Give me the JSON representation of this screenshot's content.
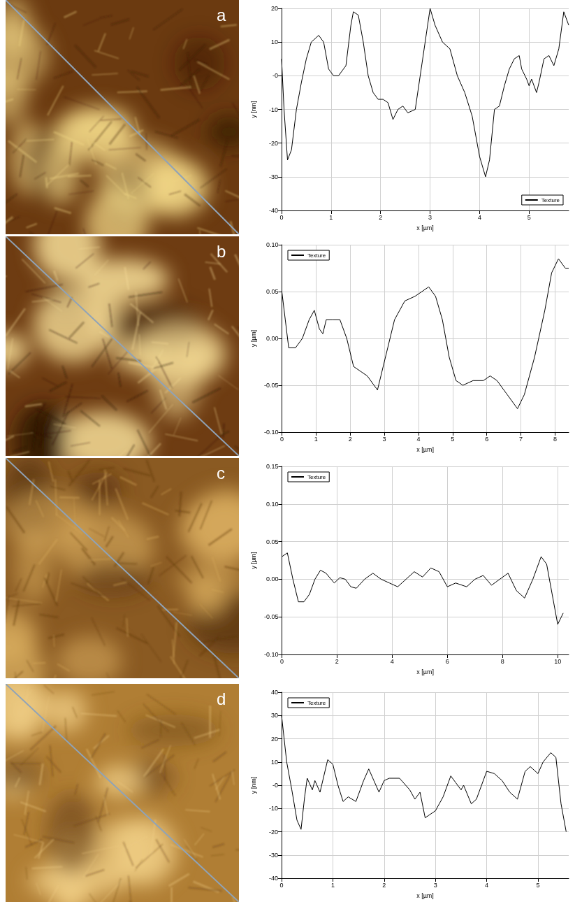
{
  "chart_data": [
    {
      "type": "line",
      "title": "a",
      "xlabel": "x [µm]",
      "ylabel": "y [nm]",
      "x": [
        0,
        0.05,
        0.12,
        0.2,
        0.3,
        0.4,
        0.5,
        0.6,
        0.75,
        0.85,
        0.95,
        1.05,
        1.15,
        1.3,
        1.4,
        1.45,
        1.55,
        1.65,
        1.75,
        1.85,
        1.95,
        2.05,
        2.15,
        2.25,
        2.35,
        2.45,
        2.55,
        2.7,
        2.85,
        3.0,
        3.1,
        3.25,
        3.4,
        3.55,
        3.7,
        3.85,
        4.0,
        4.12,
        4.2,
        4.3,
        4.4,
        4.5,
        4.6,
        4.7,
        4.8,
        4.85,
        4.95,
        5.0,
        5.05,
        5.15,
        5.2,
        5.3,
        5.4,
        5.5,
        5.6,
        5.7,
        5.8
      ],
      "series": [
        {
          "name": "Texture",
          "color": "#000000",
          "values": [
            5,
            -10,
            -25,
            -22,
            -10,
            -2,
            5,
            10,
            12,
            10,
            2,
            0,
            0,
            3,
            15,
            19,
            18,
            10,
            0,
            -5,
            -7,
            -7,
            -8,
            -13,
            -10,
            -9,
            -11,
            -10,
            5,
            20,
            15,
            10,
            8,
            0,
            -5,
            -12,
            -24,
            -30,
            -25,
            -10,
            -9,
            -3,
            2,
            5,
            6,
            2,
            -1,
            -3,
            -1,
            -5,
            -2,
            5,
            6,
            3,
            8,
            19,
            15
          ]
        }
      ],
      "xlim": [
        0,
        5.8
      ],
      "xticks": [
        0,
        1,
        2,
        3,
        4,
        5
      ],
      "ylim": [
        -40,
        20
      ],
      "yticks": [
        -40,
        -30,
        -20,
        -10,
        {
          "value": 0,
          "label": "-0"
        },
        10,
        20
      ],
      "grid": true,
      "legend": "lower right"
    },
    {
      "type": "line",
      "title": "b",
      "xlabel": "x [µm]",
      "ylabel": "y [µm]",
      "x": [
        0,
        0.1,
        0.2,
        0.4,
        0.6,
        0.8,
        0.95,
        1.1,
        1.2,
        1.3,
        1.5,
        1.7,
        1.9,
        2.1,
        2.3,
        2.5,
        2.7,
        2.8,
        2.9,
        3.1,
        3.3,
        3.6,
        3.9,
        4.1,
        4.3,
        4.5,
        4.7,
        4.9,
        5.1,
        5.3,
        5.6,
        5.9,
        6.1,
        6.3,
        6.6,
        6.9,
        7.1,
        7.4,
        7.7,
        7.9,
        8.1,
        8.3,
        8.4
      ],
      "series": [
        {
          "name": "Texture",
          "color": "#000000",
          "values": [
            0.05,
            0.02,
            -0.01,
            -0.01,
            0.0,
            0.02,
            0.03,
            0.01,
            0.005,
            0.02,
            0.02,
            0.02,
            0.0,
            -0.03,
            -0.035,
            -0.04,
            -0.05,
            -0.055,
            -0.04,
            -0.01,
            0.02,
            0.04,
            0.045,
            0.05,
            0.055,
            0.045,
            0.02,
            -0.02,
            -0.045,
            -0.05,
            -0.045,
            -0.045,
            -0.04,
            -0.045,
            -0.06,
            -0.075,
            -0.06,
            -0.02,
            0.03,
            0.07,
            0.085,
            0.075,
            0.075
          ]
        }
      ],
      "xlim": [
        0,
        8.4
      ],
      "xticks": [
        0,
        1,
        2,
        3,
        4,
        5,
        6,
        7,
        8
      ],
      "ylim": [
        -0.1,
        0.1
      ],
      "yticks": [
        {
          "value": -0.1,
          "label": "-0.10"
        },
        -0.05,
        {
          "value": 0,
          "label": "0.00"
        },
        0.05,
        {
          "value": 0.1,
          "label": "0.10"
        }
      ],
      "grid": true,
      "legend": "upper left"
    },
    {
      "type": "line",
      "title": "c",
      "xlabel": "x [µm]",
      "ylabel": "y [µm]",
      "x": [
        0,
        0.2,
        0.4,
        0.6,
        0.8,
        1.0,
        1.2,
        1.4,
        1.6,
        1.9,
        2.1,
        2.3,
        2.5,
        2.7,
        3.0,
        3.3,
        3.6,
        3.9,
        4.2,
        4.5,
        4.8,
        5.1,
        5.4,
        5.7,
        6.0,
        6.3,
        6.7,
        7.0,
        7.3,
        7.6,
        7.9,
        8.2,
        8.5,
        8.8,
        9.1,
        9.4,
        9.6,
        9.8,
        10.0,
        10.2
      ],
      "series": [
        {
          "name": "Texture",
          "color": "#000000",
          "values": [
            0.03,
            0.035,
            0.0,
            -0.03,
            -0.03,
            -0.02,
            0.0,
            0.012,
            0.008,
            -0.005,
            0.002,
            0.0,
            -0.01,
            -0.012,
            0.0,
            0.008,
            0.0,
            -0.005,
            -0.01,
            0.0,
            0.01,
            0.003,
            0.015,
            0.01,
            -0.01,
            -0.005,
            -0.01,
            0.0,
            0.005,
            -0.008,
            0.0,
            0.008,
            -0.015,
            -0.025,
            0.0,
            0.03,
            0.02,
            -0.02,
            -0.06,
            -0.045
          ]
        }
      ],
      "xlim": [
        0,
        10.4
      ],
      "xticks": [
        0,
        2,
        4,
        6,
        8,
        10
      ],
      "ylim": [
        -0.1,
        0.15
      ],
      "yticks": [
        {
          "value": -0.1,
          "label": "-0.10"
        },
        -0.05,
        {
          "value": 0,
          "label": "0.00"
        },
        0.05,
        {
          "value": 0.1,
          "label": "0.10"
        },
        0.15
      ],
      "grid": true,
      "legend": "upper left"
    },
    {
      "type": "line",
      "title": "d",
      "xlabel": "x [µm]",
      "ylabel": "y [nm]",
      "x": [
        0,
        0.1,
        0.2,
        0.3,
        0.38,
        0.45,
        0.5,
        0.6,
        0.65,
        0.75,
        0.9,
        1.0,
        1.1,
        1.2,
        1.3,
        1.45,
        1.6,
        1.7,
        1.8,
        1.9,
        2.0,
        2.1,
        2.3,
        2.5,
        2.6,
        2.7,
        2.8,
        3.0,
        3.15,
        3.3,
        3.4,
        3.5,
        3.55,
        3.7,
        3.8,
        4.0,
        4.15,
        4.3,
        4.45,
        4.6,
        4.75,
        4.85,
        5.0,
        5.1,
        5.25,
        5.35,
        5.45,
        5.55
      ],
      "series": [
        {
          "name": "Texture",
          "color": "#000000",
          "values": [
            30,
            10,
            -2,
            -15,
            -19,
            -5,
            3,
            -2,
            2,
            -3,
            11,
            9,
            0,
            -7,
            -5,
            -7,
            2,
            7,
            2,
            -3,
            2,
            3,
            3,
            -2,
            -6,
            -3,
            -14,
            -11,
            -5,
            4,
            1,
            -2,
            0,
            -8,
            -6,
            6,
            5,
            2,
            -3,
            -6,
            6,
            8,
            5,
            10,
            14,
            12,
            -8,
            -20
          ]
        }
      ],
      "xlim": [
        0,
        5.6
      ],
      "xticks": [
        0,
        1,
        2,
        3,
        4,
        5
      ],
      "ylim": [
        -40,
        40
      ],
      "yticks": [
        -40,
        -30,
        -20,
        -10,
        {
          "value": 0,
          "label": "-0"
        },
        10,
        20,
        30,
        40
      ],
      "grid": true,
      "legend": "upper left"
    }
  ]
}
